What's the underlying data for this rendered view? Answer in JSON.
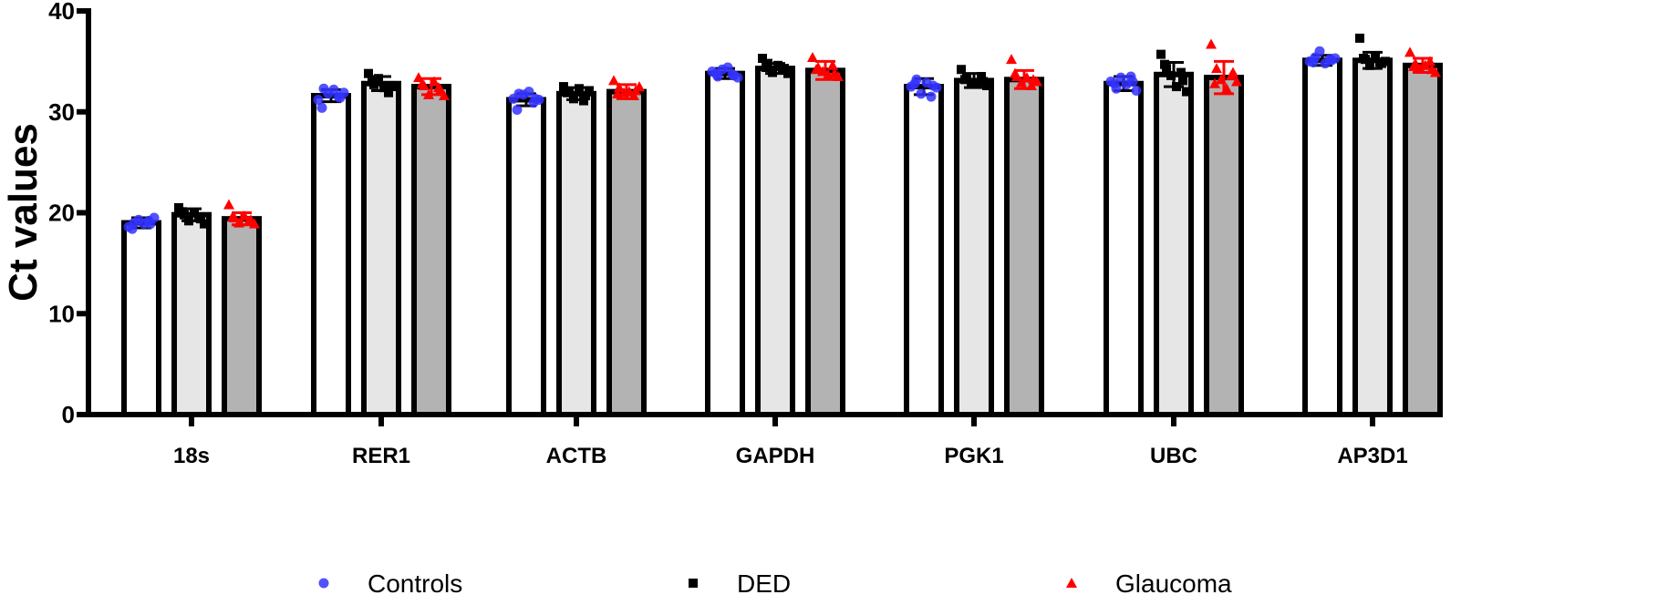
{
  "chart_data": {
    "type": "bar",
    "title": "",
    "xlabel": "",
    "ylabel": "Ct values",
    "ylim": [
      0,
      40
    ],
    "yticks": [
      "0",
      "10",
      "20",
      "30",
      "40"
    ],
    "categories": [
      "18s",
      "RER1",
      "ACTB",
      "GAPDH",
      "PGK1",
      "UBC",
      "AP3D1"
    ],
    "legend_position": "bottom",
    "series": [
      {
        "name": "Controls",
        "marker": "circle",
        "marker_color": "#3333ff",
        "fill": "#ffffff",
        "values": [
          19.0,
          31.6,
          31.2,
          33.8,
          32.5,
          32.8,
          35.1
        ],
        "sd": [
          0.5,
          0.6,
          0.6,
          0.5,
          0.8,
          0.7,
          0.5
        ],
        "points": [
          [
            18.6,
            19.0,
            19.3,
            18.9,
            19.2,
            19.5,
            18.4,
            18.9
          ],
          [
            31.2,
            32.3,
            31.8,
            32.2,
            31.5,
            31.9,
            30.4,
            31.4
          ],
          [
            31.3,
            31.8,
            31.7,
            32.0,
            30.9,
            31.2,
            30.2,
            31.3
          ],
          [
            34.0,
            33.5,
            34.2,
            34.4,
            33.7,
            33.4,
            33.8,
            33.6
          ],
          [
            32.5,
            33.2,
            31.8,
            32.9,
            31.5,
            32.4,
            32.8,
            32.6
          ],
          [
            33.0,
            32.3,
            33.4,
            32.7,
            33.5,
            32.1,
            32.8,
            33.0
          ],
          [
            35.0,
            35.4,
            36.0,
            34.8,
            35.2,
            35.3,
            34.9,
            35.1
          ]
        ]
      },
      {
        "name": "DED",
        "marker": "square",
        "marker_color": "#000000",
        "fill": "#e6e6e6",
        "values": [
          19.8,
          32.8,
          31.8,
          34.3,
          33.1,
          33.7,
          35.1
        ],
        "sd": [
          0.6,
          0.7,
          0.6,
          0.5,
          0.7,
          1.2,
          0.8
        ],
        "points": [
          [
            20.5,
            19.8,
            19.2,
            20.0,
            19.5,
            18.9,
            20.1,
            19.4
          ],
          [
            33.8,
            32.7,
            33.3,
            32.4,
            31.9,
            32.5,
            33.0,
            32.6
          ],
          [
            32.5,
            32.0,
            31.3,
            32.3,
            31.1,
            32.1,
            31.9,
            31.6
          ],
          [
            35.3,
            34.8,
            33.9,
            34.6,
            34.2,
            33.8,
            34.4,
            34.3
          ],
          [
            34.2,
            33.4,
            32.8,
            32.9,
            33.5,
            32.6,
            33.2,
            33.0
          ],
          [
            35.7,
            34.3,
            33.6,
            32.5,
            33.9,
            32.0,
            34.7,
            33.1
          ],
          [
            37.3,
            35.2,
            34.6,
            35.5,
            34.9,
            35.0,
            35.3,
            34.8
          ]
        ]
      },
      {
        "name": "Glaucoma",
        "marker": "triangle",
        "marker_color": "#ff0000",
        "fill": "#b3b3b3",
        "values": [
          19.4,
          32.5,
          32.0,
          34.1,
          33.2,
          33.4,
          34.6
        ],
        "sd": [
          0.6,
          0.8,
          0.7,
          0.9,
          0.9,
          1.6,
          0.7
        ],
        "points": [
          [
            20.8,
            19.5,
            19.0,
            19.7,
            19.2,
            18.9,
            19.6,
            19.3
          ],
          [
            33.4,
            32.6,
            31.7,
            33.0,
            32.4,
            31.6,
            32.8,
            32.2
          ],
          [
            33.1,
            32.4,
            31.9,
            32.0,
            31.6,
            32.5,
            31.8,
            32.1
          ],
          [
            35.4,
            34.4,
            34.0,
            33.7,
            34.6,
            33.5,
            34.2,
            33.8
          ],
          [
            35.2,
            33.5,
            32.9,
            33.4,
            32.6,
            33.0,
            33.8,
            33.2
          ],
          [
            36.7,
            34.3,
            33.2,
            32.3,
            33.6,
            33.0,
            32.8,
            33.9
          ],
          [
            35.9,
            34.8,
            34.3,
            34.6,
            35.0,
            33.9,
            34.5,
            34.2
          ]
        ]
      }
    ]
  }
}
